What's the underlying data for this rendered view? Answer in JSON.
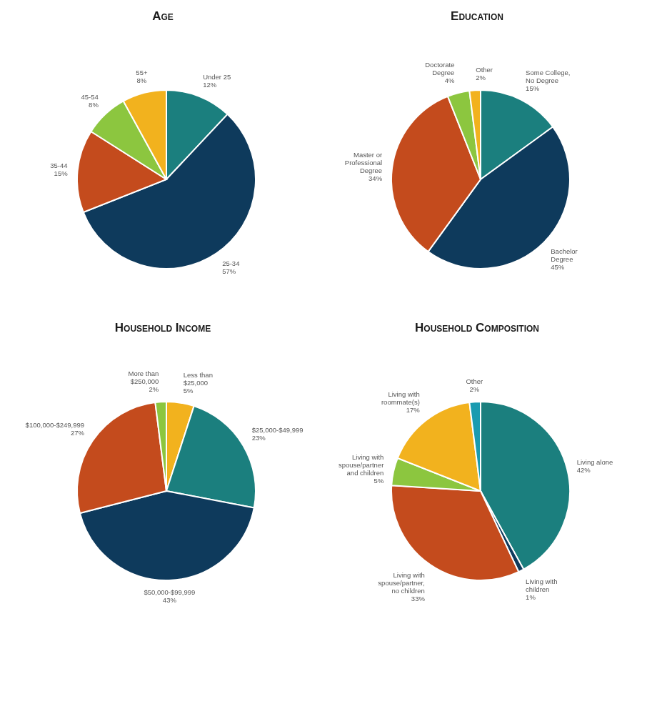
{
  "chart_data": [
    {
      "type": "pie",
      "title": "Age",
      "categories": [
        "Under 25",
        "25-34",
        "35-44",
        "45-54",
        "55+"
      ],
      "values": [
        12,
        57,
        15,
        8,
        8
      ],
      "value_labels": [
        "12%",
        "57%",
        "15%",
        "8%",
        "8%"
      ],
      "colors": [
        "#1b7f7e",
        "#0e3a5c",
        "#c44b1d",
        "#8cc63f",
        "#f2b21e"
      ]
    },
    {
      "type": "pie",
      "title": "Education",
      "categories": [
        "Some College, No Degree",
        "Bachelor Degree",
        "Master or Professional Degree",
        "Doctorate Degree",
        "Other"
      ],
      "values": [
        15,
        45,
        34,
        4,
        2
      ],
      "value_labels": [
        "15%",
        "45%",
        "34%",
        "4%",
        "2%"
      ],
      "colors": [
        "#1b7f7e",
        "#0e3a5c",
        "#c44b1d",
        "#8cc63f",
        "#f2b21e"
      ]
    },
    {
      "type": "pie",
      "title": "Household Income",
      "categories": [
        "Less than $25,000",
        "$25,000-$49,999",
        "$50,000-$99,999",
        "$100,000-$249,999",
        "More than $250,000"
      ],
      "values": [
        5,
        23,
        43,
        27,
        2
      ],
      "value_labels": [
        "5%",
        "23%",
        "43%",
        "27%",
        "2%"
      ],
      "colors": [
        "#f2b21e",
        "#1b7f7e",
        "#0e3a5c",
        "#c44b1d",
        "#8cc63f"
      ]
    },
    {
      "type": "pie",
      "title": "Household Composition",
      "categories": [
        "Living alone",
        "Living with children",
        "Living with spouse/partner, no children",
        "Living with spouse/partner and children",
        "Living with roommate(s)",
        "Other"
      ],
      "values": [
        42,
        1,
        33,
        5,
        17,
        2
      ],
      "value_labels": [
        "42%",
        "1%",
        "33%",
        "5%",
        "17%",
        "2%"
      ],
      "colors": [
        "#1b7f7e",
        "#0e3a5c",
        "#c44b1d",
        "#8cc63f",
        "#f2b21e",
        "#1a9bb0"
      ]
    }
  ]
}
